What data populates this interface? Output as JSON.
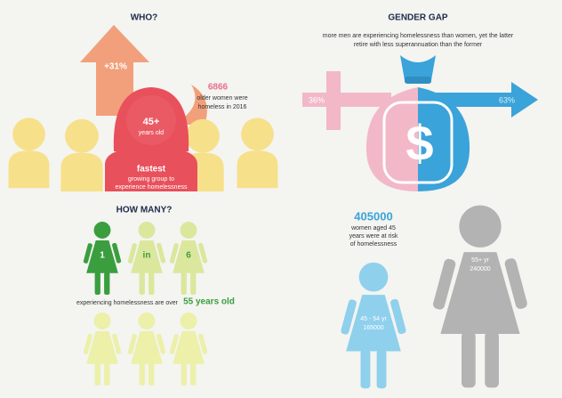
{
  "who": {
    "title": "WHO?",
    "growth": "+31%",
    "age": {
      "value": "45+",
      "label": "years old"
    },
    "count": {
      "value": 6866,
      "lines": [
        "older women were",
        "homeless in 2016"
      ]
    },
    "fastest": {
      "value": "fastest",
      "lines": [
        "growing group to",
        "experience homelessness"
      ]
    }
  },
  "gender_gap": {
    "title": "GENDER GAP",
    "lines": [
      "more men are experiencing homelessness than women, yet the latter",
      "retire with less superannuation than the former"
    ],
    "women": "36%",
    "men": "63%",
    "symbol": "$"
  },
  "how_many": {
    "title": "HOW MANY?",
    "ratio": [
      1,
      "in",
      6
    ],
    "caption": "experiencing homelessness are over",
    "highlight": "55 years old"
  },
  "at_risk": {
    "value": 405000,
    "lines": [
      "women aged 45",
      "years were at risk",
      "of homelessness"
    ],
    "groups": [
      {
        "label": "45 - 54 yr",
        "value": 165000
      },
      {
        "label": "55+ yr",
        "value": 240000
      }
    ]
  }
}
